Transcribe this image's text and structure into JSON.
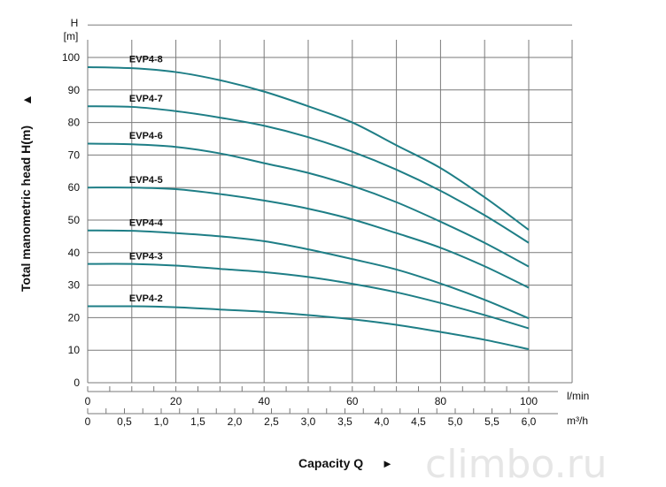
{
  "chart_data": {
    "type": "line",
    "y_axis": {
      "label_top": "H",
      "unit_top": "[m]",
      "title": "Total manometric head H(m)",
      "arrow": "▲",
      "range": [
        0,
        100
      ],
      "ticks": [
        0,
        10,
        20,
        30,
        40,
        50,
        60,
        70,
        80,
        90,
        100
      ]
    },
    "x_axis_primary": {
      "unit": "l/min",
      "range": [
        0,
        100
      ],
      "ticks": [
        0,
        20,
        40,
        60,
        80,
        100
      ]
    },
    "x_axis_secondary": {
      "unit": "m³/h",
      "range": [
        0,
        6
      ],
      "ticks": [
        "0",
        "0,5",
        "1,0",
        "1,5",
        "2,0",
        "2,5",
        "3,0",
        "3,5",
        "4,0",
        "4,5",
        "5,0",
        "5,5",
        "6,0"
      ]
    },
    "xlabel": "Capacity Q",
    "xlabel_arrow": "►",
    "grid": true,
    "series": [
      {
        "name": "EVP4-8",
        "x": [
          0,
          10,
          20,
          30,
          40,
          50,
          60,
          70,
          80,
          90,
          100
        ],
        "y": [
          97,
          96.7,
          95.5,
          93,
          89.5,
          85,
          80,
          73,
          66,
          57,
          47
        ]
      },
      {
        "name": "EVP4-7",
        "x": [
          0,
          10,
          20,
          30,
          40,
          50,
          60,
          70,
          80,
          90,
          100
        ],
        "y": [
          85,
          84.8,
          83.5,
          81.5,
          79,
          75.5,
          71,
          65.5,
          59,
          51.5,
          43
        ]
      },
      {
        "name": "EVP4-6",
        "x": [
          0,
          10,
          20,
          30,
          40,
          50,
          60,
          70,
          80,
          90,
          100
        ],
        "y": [
          73.5,
          73.3,
          72.5,
          70.5,
          67.5,
          64.5,
          60.5,
          55.5,
          49.5,
          43,
          35.7
        ]
      },
      {
        "name": "EVP4-5",
        "x": [
          0,
          10,
          20,
          30,
          40,
          50,
          60,
          70,
          80,
          90,
          100
        ],
        "y": [
          60,
          60,
          59.5,
          58,
          56,
          53.5,
          50.2,
          46,
          41.5,
          35.8,
          29.2
        ]
      },
      {
        "name": "EVP4-4",
        "x": [
          0,
          10,
          20,
          30,
          40,
          50,
          60,
          70,
          80,
          90,
          100
        ],
        "y": [
          46.8,
          46.7,
          46,
          45,
          43.5,
          41,
          38,
          34.8,
          30.5,
          25.5,
          19.8
        ]
      },
      {
        "name": "EVP4-3",
        "x": [
          0,
          10,
          20,
          30,
          40,
          50,
          60,
          70,
          80,
          90,
          100
        ],
        "y": [
          36.5,
          36.5,
          36,
          35,
          34,
          32.5,
          30.4,
          27.8,
          24.5,
          20.8,
          16.7
        ]
      },
      {
        "name": "EVP4-2",
        "x": [
          0,
          10,
          20,
          30,
          40,
          50,
          60,
          70,
          80,
          90,
          100
        ],
        "y": [
          23.5,
          23.5,
          23.2,
          22.5,
          21.8,
          20.8,
          19.5,
          17.8,
          15.6,
          13.2,
          10.3
        ]
      }
    ],
    "label_positions_data": [
      {
        "name": "EVP4-8",
        "at": [
          5,
          99
        ]
      },
      {
        "name": "EVP4-7",
        "at": [
          5,
          87
        ]
      },
      {
        "name": "EVP4-6",
        "at": [
          5,
          75.5
        ]
      },
      {
        "name": "EVP4-5",
        "at": [
          5,
          62
        ]
      },
      {
        "name": "EVP4-4",
        "at": [
          5,
          48.8
        ]
      },
      {
        "name": "EVP4-3",
        "at": [
          5,
          38.5
        ]
      },
      {
        "name": "EVP4-2",
        "at": [
          5,
          25.5
        ]
      }
    ],
    "line_color": "#1e7e86"
  },
  "watermark": {
    "text": "climbo.ru"
  }
}
